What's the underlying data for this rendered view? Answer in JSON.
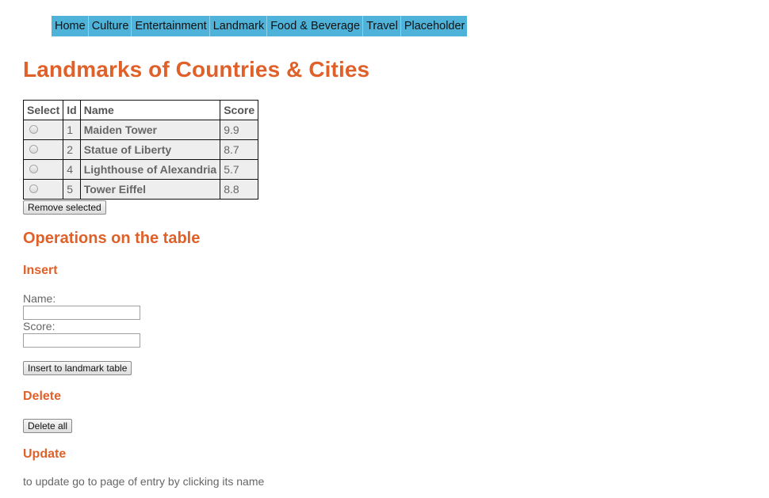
{
  "nav": {
    "items": [
      "Home",
      "Culture",
      "Entertainment",
      "Landmark",
      "Food & Beverage",
      "Travel",
      "Placeholder"
    ]
  },
  "page": {
    "title": "Landmarks of Countries & Cities"
  },
  "table": {
    "headers": {
      "select": "Select",
      "id": "Id",
      "name": "Name",
      "score": "Score"
    },
    "rows": [
      {
        "id": "1",
        "name": "Maiden Tower",
        "score": "9.9"
      },
      {
        "id": "2",
        "name": "Statue of Liberty",
        "score": "8.7"
      },
      {
        "id": "4",
        "name": "Lighthouse of Alexandria",
        "score": "5.7"
      },
      {
        "id": "5",
        "name": "Tower Eiffel",
        "score": "8.8"
      }
    ],
    "remove_label": "Remove selected"
  },
  "operations": {
    "title": "Operations on the table",
    "insert": {
      "title": "Insert",
      "name_label": "Name:",
      "name_value": "",
      "score_label": "Score:",
      "score_value": "",
      "button_label": "Insert to landmark table"
    },
    "delete": {
      "title": "Delete",
      "button_label": "Delete all"
    },
    "update": {
      "title": "Update",
      "note": "to update go to page of entry by clicking its name"
    }
  }
}
